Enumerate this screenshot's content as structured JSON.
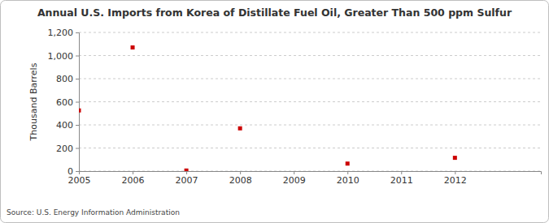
{
  "chart_data": {
    "type": "scatter",
    "title": "Annual U.S. Imports from Korea of Distillate Fuel Oil, Greater Than 500 ppm Sulfur",
    "y_label": "Thousand Barrels",
    "source": "Source: U.S. Energy Information Administration",
    "x": [
      2005,
      2006,
      2007,
      2008,
      2010,
      2012
    ],
    "values": [
      525,
      1070,
      5,
      370,
      65,
      115
    ],
    "color": "#cc0000",
    "marker": "square",
    "xlim": [
      2005,
      2013.6
    ],
    "xticks": [
      2005,
      2006,
      2007,
      2008,
      2009,
      2010,
      2011,
      2012
    ],
    "ylim": [
      0,
      1200
    ],
    "yticks": [
      0,
      200,
      400,
      600,
      800,
      {
        "value": 1000,
        "label": "1,000"
      },
      {
        "value": 1200,
        "label": "1,200"
      }
    ],
    "grid": true
  }
}
